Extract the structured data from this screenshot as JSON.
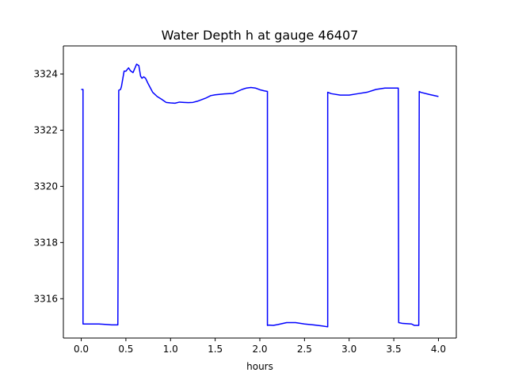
{
  "chart_data": {
    "type": "line",
    "title": "Water Depth h at gauge 46407",
    "xlabel": "hours",
    "ylabel": "",
    "xlim": [
      -0.2,
      4.2
    ],
    "ylim": [
      3314.6,
      3325.0
    ],
    "grid": false,
    "legend": "none",
    "xticks": [
      0.0,
      0.5,
      1.0,
      1.5,
      2.0,
      2.5,
      3.0,
      3.5,
      4.0
    ],
    "xtick_labels": [
      "0.0",
      "0.5",
      "1.0",
      "1.5",
      "2.0",
      "2.5",
      "3.0",
      "3.5",
      "4.0"
    ],
    "yticks": [
      3316,
      3318,
      3320,
      3322,
      3324
    ],
    "ytick_labels": [
      "3316",
      "3318",
      "3320",
      "3322",
      "3324"
    ],
    "series": [
      {
        "color": "#0000ff",
        "x": [
          0.0,
          0.02,
          0.02,
          0.1,
          0.2,
          0.3,
          0.34,
          0.41,
          0.42,
          0.44,
          0.45,
          0.48,
          0.5,
          0.53,
          0.55,
          0.58,
          0.6,
          0.62,
          0.645,
          0.665,
          0.68,
          0.7,
          0.72,
          0.75,
          0.8,
          0.85,
          0.9,
          0.95,
          1.0,
          1.05,
          1.1,
          1.15,
          1.2,
          1.25,
          1.3,
          1.35,
          1.4,
          1.45,
          1.5,
          1.6,
          1.7,
          1.8,
          1.85,
          1.9,
          1.95,
          2.0,
          2.05,
          2.085,
          2.085,
          2.1,
          2.15,
          2.2,
          2.3,
          2.4,
          2.5,
          2.6,
          2.7,
          2.76,
          2.76,
          2.8,
          2.9,
          3.0,
          3.1,
          3.2,
          3.3,
          3.4,
          3.5,
          3.55,
          3.555,
          3.6,
          3.7,
          3.73,
          3.78,
          3.785,
          3.8,
          3.9,
          4.0
        ],
        "y": [
          3323.45,
          3323.45,
          3315.1,
          3315.1,
          3315.1,
          3315.08,
          3315.07,
          3315.07,
          3323.42,
          3323.45,
          3323.55,
          3324.1,
          3324.1,
          3324.22,
          3324.12,
          3324.05,
          3324.2,
          3324.35,
          3324.3,
          3323.92,
          3323.85,
          3323.9,
          3323.85,
          3323.65,
          3323.35,
          3323.2,
          3323.1,
          3322.99,
          3322.97,
          3322.96,
          3323.0,
          3322.99,
          3322.98,
          3322.99,
          3323.03,
          3323.09,
          3323.15,
          3323.23,
          3323.26,
          3323.29,
          3323.31,
          3323.45,
          3323.5,
          3323.52,
          3323.5,
          3323.44,
          3323.4,
          3323.38,
          3315.05,
          3315.06,
          3315.05,
          3315.08,
          3315.15,
          3315.15,
          3315.1,
          3315.07,
          3315.03,
          3315.0,
          3323.35,
          3323.3,
          3323.25,
          3323.25,
          3323.3,
          3323.35,
          3323.45,
          3323.5,
          3323.5,
          3323.5,
          3315.15,
          3315.12,
          3315.1,
          3315.05,
          3315.05,
          3323.38,
          3323.35,
          3323.27,
          3323.2
        ]
      }
    ]
  }
}
